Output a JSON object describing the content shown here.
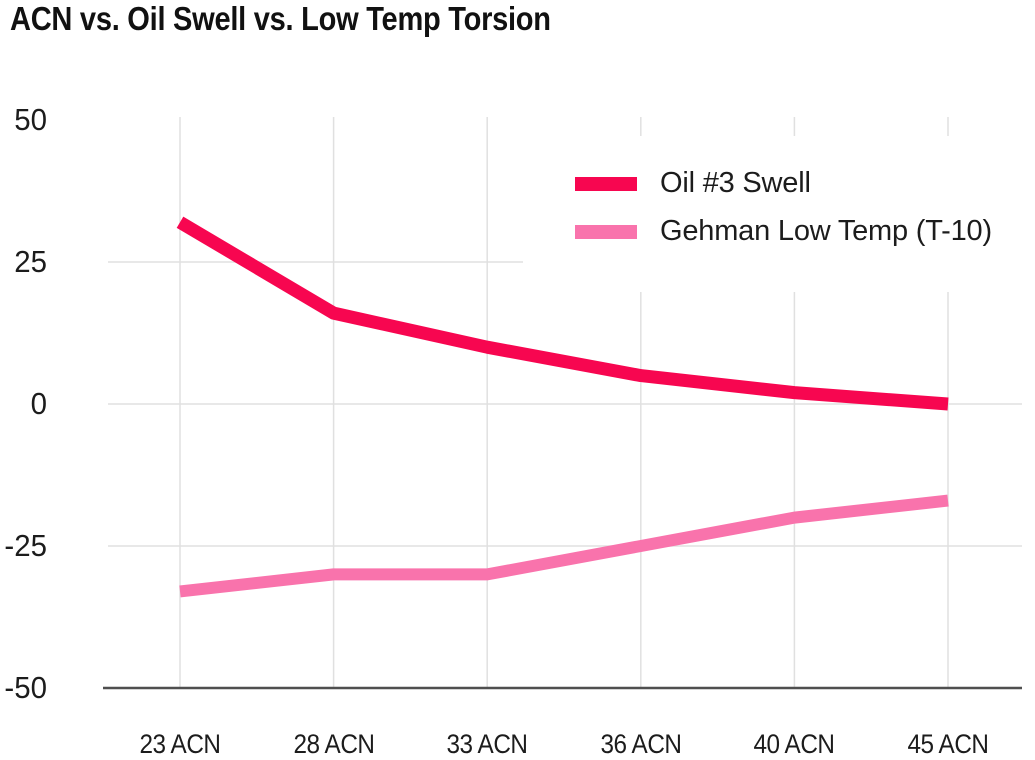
{
  "chart_data": {
    "type": "line",
    "title": "ACN vs. Oil Swell vs. Low Temp Torsion",
    "xlabel": "",
    "ylabel": "",
    "categories": [
      "23 ACN",
      "28 ACN",
      "33 ACN",
      "36 ACN",
      "40 ACN",
      "45 ACN"
    ],
    "series": [
      {
        "name": "Oil #3 Swell",
        "color": "#f70650",
        "values": [
          32,
          16,
          10,
          5,
          2,
          0
        ]
      },
      {
        "name": "Gehman Low Temp (T-10)",
        "color": "#f973ac",
        "values": [
          -33,
          -30,
          -30,
          -25,
          -20,
          -17
        ]
      }
    ],
    "yaxis": {
      "min": -50,
      "max": 50,
      "ticks": [
        50,
        25,
        0,
        -25,
        -50
      ],
      "gridline_values": [
        25,
        0,
        -25
      ]
    },
    "grid": true,
    "legend_position": "top-right",
    "colors": {
      "gridline": "#e0e0e0",
      "axis_line": "#4f4f4f",
      "title_text": "#111111",
      "tick_text": "#1c1c1c"
    }
  }
}
